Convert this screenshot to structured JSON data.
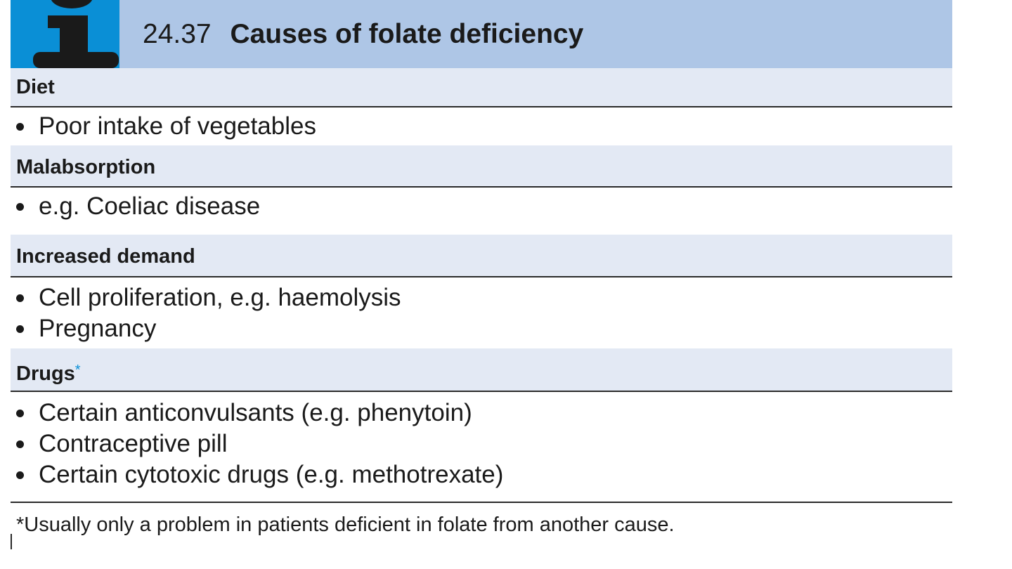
{
  "box": {
    "number": "24.37",
    "title": "Causes of folate deficiency",
    "colors": {
      "icon_background": "#0a8fd6",
      "header_background": "#aec6e6",
      "section_background": "#e3e9f4"
    },
    "icon": "info-i-icon",
    "sections": [
      {
        "label": "Diet",
        "items": [
          "Poor intake of vegetables"
        ]
      },
      {
        "label": "Malabsorption",
        "items": [
          "e.g. Coeliac disease"
        ]
      },
      {
        "label": "Increased demand",
        "items": [
          "Cell proliferation, e.g. haemolysis",
          "Pregnancy"
        ]
      },
      {
        "label": "Drugs",
        "label_marker": "*",
        "items": [
          "Certain anticonvulsants (e.g. phenytoin)",
          "Contraceptive pill",
          "Certain cytotoxic drugs (e.g. methotrexate)"
        ]
      }
    ],
    "footnote": "*Usually only a problem in patients deficient in folate from another cause."
  }
}
